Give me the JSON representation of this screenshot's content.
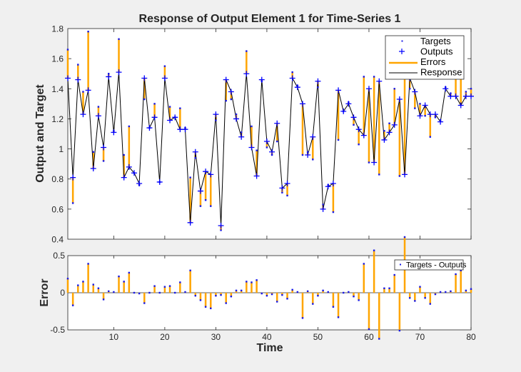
{
  "chart_data": [
    {
      "type": "line",
      "title": "Response of Output Element 1 for Time-Series 1",
      "xlabel": "",
      "ylabel": "Output and Target",
      "xlim": [
        1,
        80
      ],
      "ylim": [
        0.4,
        1.8
      ],
      "yticks": [
        "0.4",
        "0.6",
        "0.8",
        "1",
        "1.2",
        "1.4",
        "1.6",
        "1.8"
      ],
      "legend": {
        "position": "top-right",
        "entries": [
          "Targets",
          "Outputs",
          "Errors",
          "Response"
        ]
      },
      "x_start": 1,
      "targets": [
        1.66,
        0.64,
        1.56,
        1.38,
        1.78,
        0.98,
        1.28,
        0.92,
        1.5,
        1.12,
        1.73,
        0.96,
        1.15,
        0.84,
        0.76,
        1.33,
        1.14,
        1.3,
        0.78,
        1.55,
        1.28,
        1.21,
        1.27,
        1.14,
        0.81,
        0.94,
        0.62,
        0.66,
        0.62,
        1.19,
        0.46,
        1.32,
        1.33,
        1.23,
        1.11,
        1.65,
        1.15,
        0.99,
        1.45,
        1.01,
        0.96,
        1.05,
        0.71,
        0.69,
        1.51,
        1.42,
        0.96,
        0.98,
        0.93,
        1.41,
        0.63,
        0.76,
        0.58,
        1.06,
        1.25,
        1.31,
        1.16,
        1.03,
        1.48,
        0.91,
        1.48,
        0.83,
        1.12,
        1.17,
        1.4,
        0.82,
        1.58,
        1.4,
        1.27,
        1.3,
        1.22,
        1.08,
        1.21,
        1.19,
        1.41,
        1.37,
        1.6,
        1.59,
        1.38,
        1.4
      ],
      "outputs": [
        1.47,
        0.81,
        1.46,
        1.23,
        1.39,
        0.87,
        1.22,
        1.01,
        1.48,
        1.11,
        1.51,
        0.81,
        0.88,
        0.84,
        0.77,
        1.47,
        1.14,
        1.21,
        0.78,
        1.47,
        1.19,
        1.21,
        1.13,
        1.13,
        0.51,
        0.98,
        0.72,
        0.85,
        0.83,
        1.23,
        0.49,
        1.46,
        1.38,
        1.2,
        1.08,
        1.5,
        1.01,
        0.82,
        1.46,
        1.05,
        0.98,
        1.17,
        0.74,
        0.77,
        1.47,
        1.41,
        1.3,
        0.96,
        1.08,
        1.45,
        0.6,
        0.75,
        0.77,
        1.39,
        1.25,
        1.3,
        1.21,
        1.13,
        1.09,
        1.4,
        0.91,
        1.45,
        1.06,
        1.11,
        1.16,
        1.33,
        0.83,
        1.47,
        1.38,
        1.22,
        1.29,
        1.23,
        1.23,
        1.18,
        1.4,
        1.35,
        1.35,
        1.29,
        1.35,
        1.35
      ]
    },
    {
      "type": "bar",
      "title": "",
      "xlabel": "Time",
      "ylabel": "Error",
      "xlim": [
        1,
        80
      ],
      "ylim": [
        -0.5,
        0.5
      ],
      "xticks": [
        "10",
        "20",
        "30",
        "40",
        "50",
        "60",
        "70",
        "80"
      ],
      "yticks": [
        "-0.5",
        "0",
        "0.5"
      ],
      "legend": {
        "position": "top-right",
        "entries": [
          "Targets - Outputs"
        ]
      },
      "values_equal": "targets - outputs"
    }
  ],
  "colors": {
    "targets": "#1a1ae6",
    "outputs": "#0000ff",
    "errors": "#ffa500",
    "response": "#000000",
    "axes": "#262626",
    "figure_bg": "#f0f0f0",
    "axes_bg": "#ffffff"
  }
}
